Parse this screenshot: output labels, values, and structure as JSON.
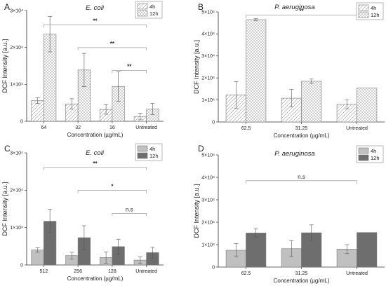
{
  "chart_data": [
    {
      "panel": "A",
      "type": "bar",
      "title": "E. coli",
      "xlabel": "Concentration (µg/mL)",
      "ylabel": "DCF Intensity [a.u.]",
      "categories": [
        "64",
        "32",
        "16",
        "Untreated"
      ],
      "ylim": [
        0,
        30000
      ],
      "yticks": [
        "0",
        "1×10⁴",
        "2×10⁴",
        "3×10⁴"
      ],
      "legend_position": "top-right",
      "series": [
        {
          "name": "4h",
          "values": [
            5600,
            4700,
            3200,
            1300
          ],
          "errors": [
            800,
            1400,
            1300,
            900
          ],
          "pattern": "hatch",
          "color": "#ffffff"
        },
        {
          "name": "12h",
          "values": [
            23600,
            13900,
            9400,
            3300
          ],
          "errors": [
            4800,
            4500,
            4000,
            1500
          ],
          "pattern": "cross",
          "color": "#ffffff"
        }
      ],
      "significance": [
        {
          "from": 0,
          "to": 3,
          "label": "**"
        },
        {
          "from": 1,
          "to": 3,
          "label": "**"
        },
        {
          "from": 2,
          "to": 3,
          "label": "**"
        }
      ]
    },
    {
      "panel": "B",
      "type": "bar",
      "title": "P. aeruginosa",
      "xlabel": "Concentration (µg/mL)",
      "ylabel": "DCF Intensity [a.u.]",
      "categories": [
        "62.5",
        "31.25",
        "Untreated"
      ],
      "ylim": [
        0,
        50000
      ],
      "yticks": [
        "0",
        "1×10⁴",
        "2×10⁴",
        "3×10⁴",
        "4×10⁴",
        "5×10⁴"
      ],
      "legend_position": "top-right",
      "series": [
        {
          "name": "4h",
          "values": [
            12300,
            10800,
            8000
          ],
          "errors": [
            6000,
            4000,
            2000
          ],
          "pattern": "hatch",
          "color": "#ffffff"
        },
        {
          "name": "12h",
          "values": [
            46500,
            18500,
            15400
          ],
          "errors": [
            400,
            1000,
            0
          ],
          "pattern": "cross",
          "color": "#ffffff"
        }
      ],
      "significance": [
        {
          "from": 0,
          "to": 2,
          "label": "**"
        }
      ]
    },
    {
      "panel": "C",
      "type": "bar",
      "title": "E. coli",
      "xlabel": "Concentration (µg/mL)",
      "ylabel": "DCF Intensity [a.u.]",
      "categories": [
        "512",
        "256",
        "128",
        "Untreated"
      ],
      "ylim": [
        0,
        30000
      ],
      "yticks": [
        "0",
        "1×10⁴",
        "2×10⁴",
        "3×10⁴"
      ],
      "legend_position": "top-right",
      "series": [
        {
          "name": "4h",
          "values": [
            4000,
            2500,
            2000,
            1300
          ],
          "errors": [
            600,
            900,
            1500,
            900
          ],
          "pattern": "solid",
          "color": "#c0c0c0"
        },
        {
          "name": "12h",
          "values": [
            11700,
            7300,
            4900,
            3300
          ],
          "errors": [
            3200,
            3200,
            2000,
            1500
          ],
          "pattern": "solid",
          "color": "#6e6e6e"
        }
      ],
      "significance": [
        {
          "from": 0,
          "to": 3,
          "label": "**"
        },
        {
          "from": 1,
          "to": 3,
          "label": "*"
        },
        {
          "from": 2,
          "to": 3,
          "label": "n.s"
        }
      ]
    },
    {
      "panel": "D",
      "type": "bar",
      "title": "P. aeruginosa",
      "xlabel": "Concentration (µg/mL)",
      "ylabel": "DCF Intensity [a.u.]",
      "categories": [
        "62.5",
        "31.25",
        "Untreated"
      ],
      "ylim": [
        0,
        50000
      ],
      "yticks": [
        "0",
        "1×10⁴",
        "2×10⁴",
        "3×10⁴",
        "4×10⁴",
        "5×10⁴"
      ],
      "legend_position": "top-right",
      "series": [
        {
          "name": "4h",
          "values": [
            7500,
            8200,
            8000
          ],
          "errors": [
            3000,
            3500,
            2000
          ],
          "pattern": "solid",
          "color": "#c0c0c0"
        },
        {
          "name": "12h",
          "values": [
            15200,
            15300,
            15400
          ],
          "errors": [
            1800,
            3500,
            0
          ],
          "pattern": "solid",
          "color": "#6e6e6e"
        }
      ],
      "significance": [
        {
          "from": 0,
          "to": 2,
          "label": "n.s"
        }
      ]
    }
  ]
}
